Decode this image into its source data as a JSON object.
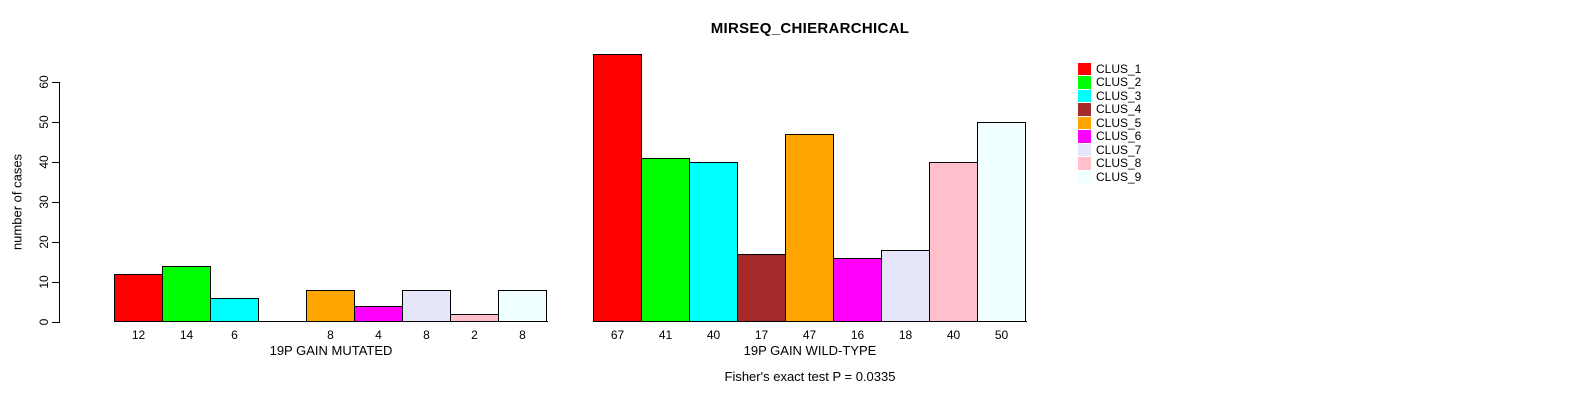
{
  "title": "MIRSEQ_CHIERARCHICAL",
  "ylabel": "number of cases",
  "fisher_note": "Fisher's exact test P = 0.0335",
  "chart_data": {
    "type": "bar",
    "title": "MIRSEQ_CHIERARCHICAL",
    "ylabel": "number of cases",
    "ylim": [
      0,
      60
    ],
    "yticks": [
      0,
      10,
      20,
      30,
      40,
      50,
      60
    ],
    "grid": false,
    "legend_position": "right",
    "categories": [
      "CLUS_1",
      "CLUS_2",
      "CLUS_3",
      "CLUS_4",
      "CLUS_5",
      "CLUS_6",
      "CLUS_7",
      "CLUS_8",
      "CLUS_9"
    ],
    "colors": [
      "#ff0000",
      "#00ff00",
      "#00ffff",
      "#a52a2a",
      "#ffa500",
      "#ff00ff",
      "#e6e6fa",
      "#ffc0cb",
      "#f0ffff"
    ],
    "groups": [
      {
        "label": "19P GAIN MUTATED",
        "values": [
          12,
          14,
          6,
          0,
          8,
          4,
          8,
          2,
          8
        ]
      },
      {
        "label": "19P GAIN WILD-TYPE",
        "values": [
          67,
          41,
          40,
          17,
          47,
          16,
          18,
          40,
          50
        ]
      }
    ],
    "annotation": "Fisher's exact test P = 0.0335"
  }
}
